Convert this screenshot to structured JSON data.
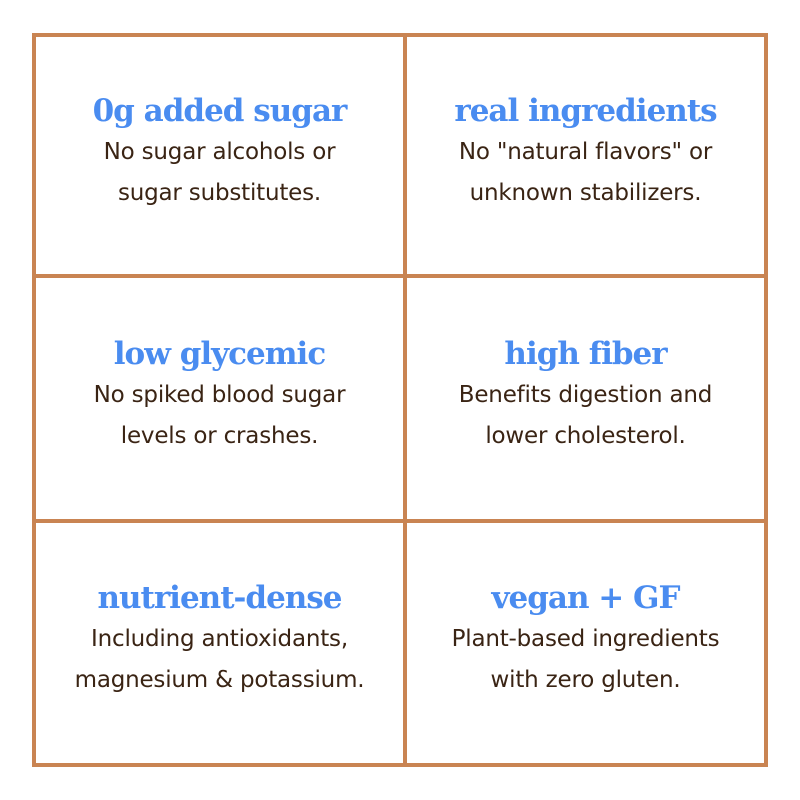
{
  "colors": {
    "border": "#c98452",
    "title": "#4a8cf0",
    "text": "#3a2414",
    "background": "#ffffff"
  },
  "cells": [
    {
      "title": "0g added sugar",
      "lines": [
        "No sugar alcohols or",
        "sugar substitutes."
      ]
    },
    {
      "title": "real ingredients",
      "lines": [
        "No \"natural flavors\" or",
        "unknown stabilizers."
      ]
    },
    {
      "title": "low glycemic",
      "lines": [
        "No spiked blood sugar",
        "levels or crashes."
      ]
    },
    {
      "title": "high fiber",
      "lines": [
        "Benefits digestion and",
        "lower cholesterol."
      ]
    },
    {
      "title": "nutrient-dense",
      "lines": [
        "Including antioxidants,",
        "magnesium & potassium."
      ]
    },
    {
      "title": "vegan + GF",
      "lines": [
        "Plant-based ingredients",
        "with zero gluten."
      ]
    }
  ]
}
